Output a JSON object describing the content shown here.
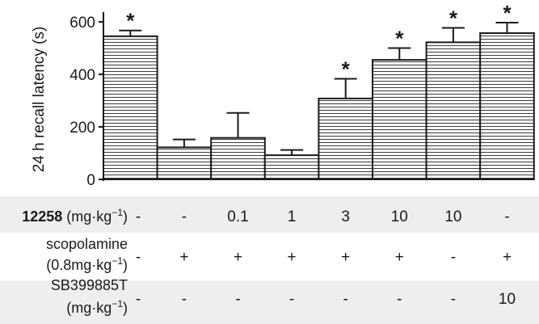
{
  "chart_data": {
    "type": "bar",
    "ylabel": "24 h recall latency (s)",
    "ylim": [
      0,
      600
    ],
    "yticks": [
      0,
      200,
      400,
      600
    ],
    "bar_fill": "horizontal-hatch",
    "colors": {
      "hatch": "#3a3a3a",
      "outline": "#1a1a1a",
      "band": "#eeeeee"
    },
    "values": [
      545,
      122,
      158,
      92,
      308,
      455,
      522,
      557
    ],
    "errors": [
      22,
      30,
      95,
      20,
      75,
      45,
      55,
      40
    ],
    "significance": [
      "*",
      "",
      "",
      "",
      "*",
      "*",
      "*",
      "*"
    ]
  },
  "table": {
    "rows": [
      {
        "label_bold": "12258",
        "label_rest": " (mg·kg",
        "label_sup": "−1",
        "label_close": ")",
        "label_line2": "",
        "label_line2_sup": "",
        "label_line2_close": "",
        "first": "-",
        "values": [
          "-",
          "0.1",
          "1",
          "3",
          "10",
          "10",
          "-"
        ]
      },
      {
        "label_bold": "",
        "label_rest": "scopolamine",
        "label_sup": "",
        "label_close": "",
        "label_line2": "(0.8mg·kg",
        "label_line2_sup": "−1",
        "label_line2_close": ")",
        "first": "-",
        "values": [
          "+",
          "+",
          "+",
          "+",
          "+",
          "-",
          "+"
        ]
      },
      {
        "label_bold": "",
        "label_rest": "SB399885T",
        "label_sup": "",
        "label_close": "",
        "label_line2": "(mg·kg",
        "label_line2_sup": "−1",
        "label_line2_close": ")",
        "first": "-",
        "values": [
          "-",
          "-",
          "-",
          "-",
          "-",
          "-",
          "10"
        ]
      }
    ]
  }
}
